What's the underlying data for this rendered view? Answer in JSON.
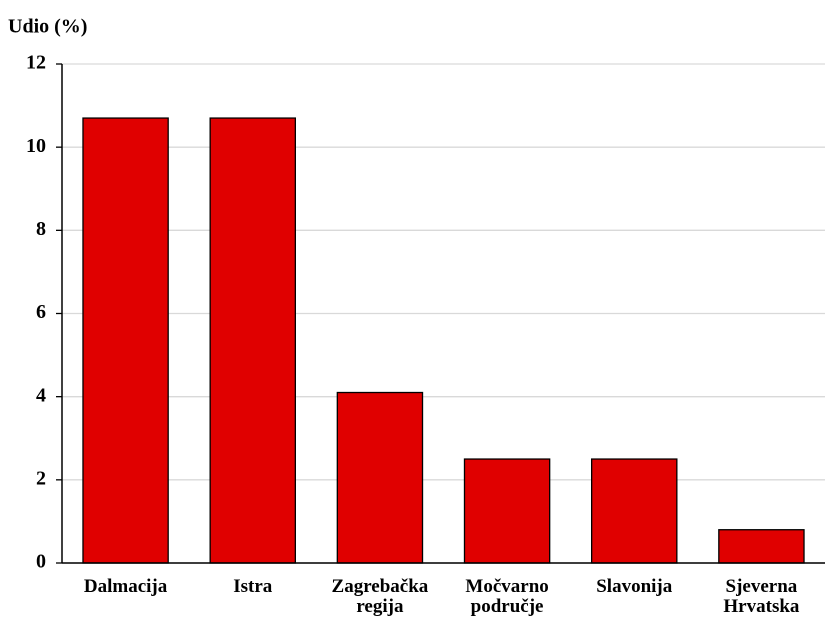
{
  "chart_data": {
    "type": "bar",
    "ylabel": "Udio (%)",
    "categories": [
      "Dalmacija",
      "Istra",
      "Zagrebačka regija",
      "Močvarno područje",
      "Slavonija",
      "Sjeverna Hrvatska"
    ],
    "values": [
      10.7,
      10.7,
      4.1,
      2.5,
      2.5,
      0.8
    ],
    "color": "#e00000",
    "ylim": [
      0,
      12
    ],
    "yticks": [
      0,
      2,
      4,
      6,
      8,
      10,
      12
    ],
    "grid": true
  }
}
